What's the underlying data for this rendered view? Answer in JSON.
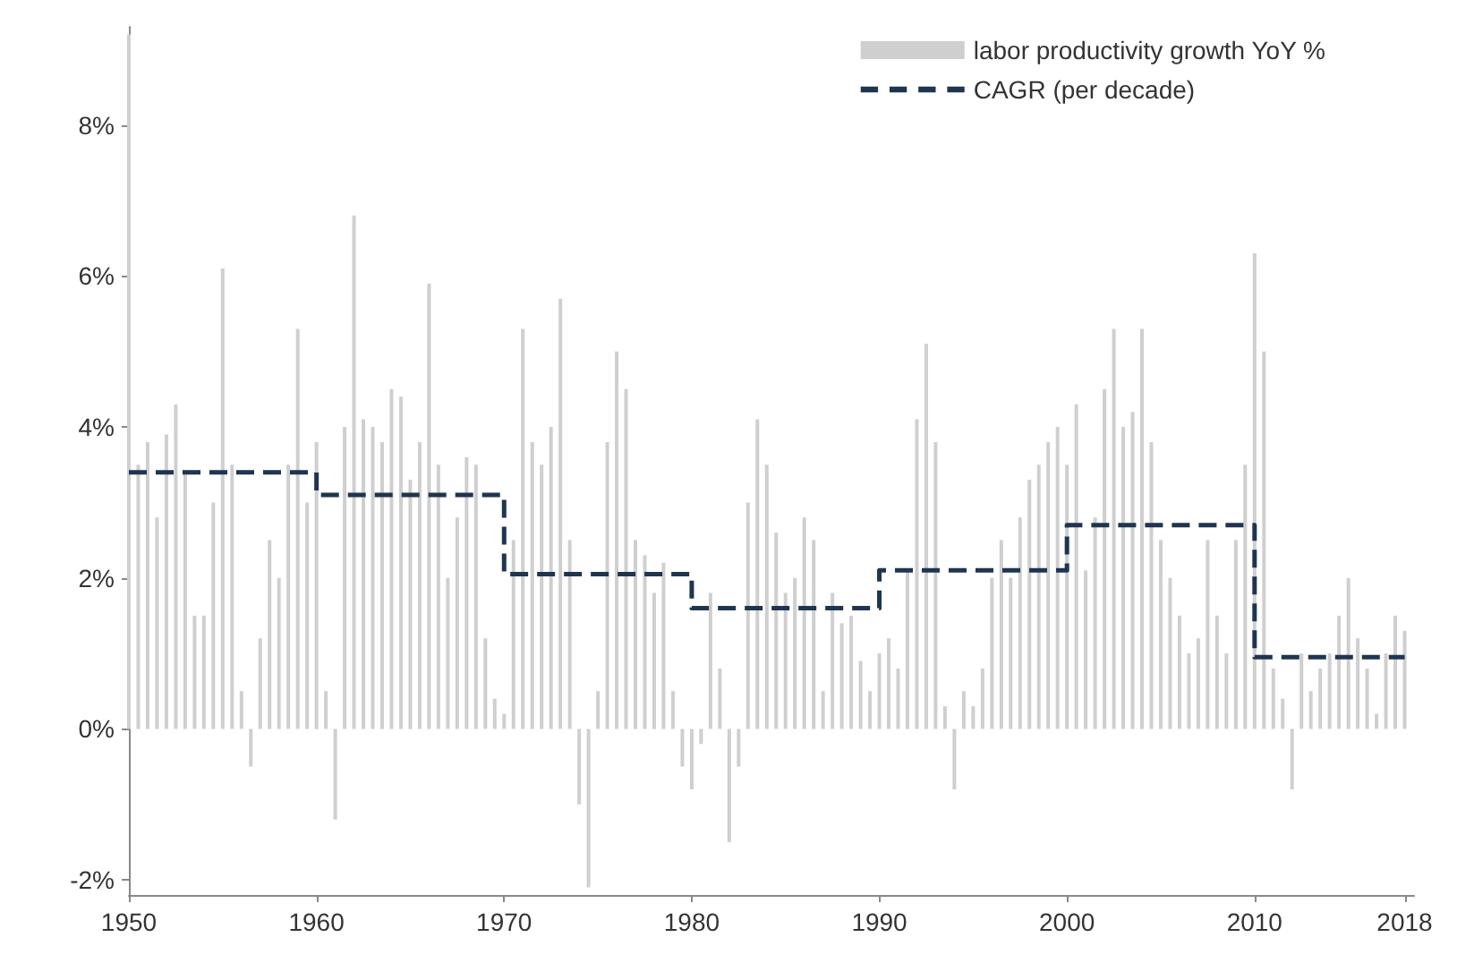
{
  "chart_data": {
    "type": "bar",
    "xlim": [
      1950,
      2018.5
    ],
    "xticks": [
      1950,
      1960,
      1970,
      1980,
      1990,
      2000,
      2010,
      2018
    ],
    "ylim": [
      -2.2,
      9.3
    ],
    "yticks": [
      {
        "value": -2,
        "label": "-2%"
      },
      {
        "value": 0,
        "label": "0%"
      },
      {
        "value": 2,
        "label": "2%"
      },
      {
        "value": 4,
        "label": "4%"
      },
      {
        "value": 6,
        "label": "6%"
      },
      {
        "value": 8,
        "label": "8%"
      }
    ],
    "grid": false,
    "legend": "top right",
    "series": [
      {
        "name": "labor productivity growth YoY %",
        "color": "#cfcfcf",
        "x": [
          1950,
          1950.5,
          1951,
          1951.5,
          1952,
          1952.5,
          1953,
          1953.5,
          1954,
          1954.5,
          1955,
          1955.5,
          1956,
          1956.5,
          1957,
          1957.5,
          1958,
          1958.5,
          1959,
          1959.5,
          1960,
          1960.5,
          1961,
          1961.5,
          1962,
          1962.5,
          1963,
          1963.5,
          1964,
          1964.5,
          1965,
          1965.5,
          1966,
          1966.5,
          1967,
          1967.5,
          1968,
          1968.5,
          1969,
          1969.5,
          1970,
          1970.5,
          1971,
          1971.5,
          1972,
          1972.5,
          1973,
          1973.5,
          1974,
          1974.5,
          1975,
          1975.5,
          1976,
          1976.5,
          1977,
          1977.5,
          1978,
          1978.5,
          1979,
          1979.5,
          1980,
          1980.5,
          1981,
          1981.5,
          1982,
          1982.5,
          1983,
          1983.5,
          1984,
          1984.5,
          1985,
          1985.5,
          1986,
          1986.5,
          1987,
          1987.5,
          1988,
          1988.5,
          1989,
          1989.5,
          1990,
          1990.5,
          1991,
          1991.5,
          1992,
          1992.5,
          1993,
          1993.5,
          1994,
          1994.5,
          1995,
          1995.5,
          1996,
          1996.5,
          1997,
          1997.5,
          1998,
          1998.5,
          1999,
          1999.5,
          2000,
          2000.5,
          2001,
          2001.5,
          2002,
          2002.5,
          2003,
          2003.5,
          2004,
          2004.5,
          2005,
          2005.5,
          2006,
          2006.5,
          2007,
          2007.5,
          2008,
          2008.5,
          2009,
          2009.5,
          2010,
          2010.5,
          2011,
          2011.5,
          2012,
          2012.5,
          2013,
          2013.5,
          2014,
          2014.5,
          2015,
          2015.5,
          2016,
          2016.5,
          2017,
          2017.5,
          2018
        ],
        "values": [
          9.2,
          3.5,
          3.8,
          2.8,
          3.9,
          4.3,
          3.4,
          1.5,
          1.5,
          3.0,
          6.1,
          3.5,
          0.5,
          -0.5,
          1.2,
          2.5,
          2.0,
          3.5,
          5.3,
          3.0,
          3.8,
          0.5,
          -1.2,
          4.0,
          6.8,
          4.1,
          4.0,
          3.8,
          4.5,
          4.4,
          3.3,
          3.8,
          5.9,
          3.5,
          2.0,
          2.8,
          3.6,
          3.5,
          1.2,
          0.4,
          0.2,
          2.5,
          5.3,
          3.8,
          3.5,
          4.0,
          5.7,
          2.5,
          -1.0,
          -2.1,
          0.5,
          3.8,
          5.0,
          4.5,
          2.5,
          2.3,
          1.8,
          2.2,
          0.5,
          -0.5,
          -0.8,
          -0.2,
          1.8,
          0.8,
          -1.5,
          -0.5,
          3.0,
          4.1,
          3.5,
          2.6,
          1.8,
          2.0,
          2.8,
          2.5,
          0.5,
          1.8,
          1.4,
          1.5,
          0.9,
          0.5,
          1.0,
          1.2,
          0.8,
          2.1,
          4.1,
          5.1,
          3.8,
          0.3,
          -0.8,
          0.5,
          0.3,
          0.8,
          2.0,
          2.5,
          2.0,
          2.8,
          3.3,
          3.5,
          3.8,
          4.0,
          3.5,
          4.3,
          2.1,
          2.8,
          4.5,
          5.3,
          4.0,
          4.2,
          5.3,
          3.8,
          2.5,
          2.0,
          1.5,
          1.0,
          1.2,
          2.5,
          1.5,
          1.0,
          2.5,
          3.5,
          6.3,
          5.0,
          0.8,
          0.4,
          -0.8,
          1.0,
          0.5,
          0.8,
          1.0,
          1.5,
          2.0,
          1.2,
          0.8,
          0.2,
          1.0,
          1.5,
          1.3
        ]
      },
      {
        "name": "CAGR (per decade)",
        "type": "step",
        "color": "#1f3550",
        "line_style": "dashed",
        "marker": "none",
        "x": [
          1950,
          1960,
          1970,
          1980,
          1990,
          2000,
          2010,
          2018
        ],
        "values": [
          3.4,
          3.1,
          2.05,
          1.6,
          2.1,
          2.7,
          0.95,
          0.95
        ]
      }
    ]
  }
}
